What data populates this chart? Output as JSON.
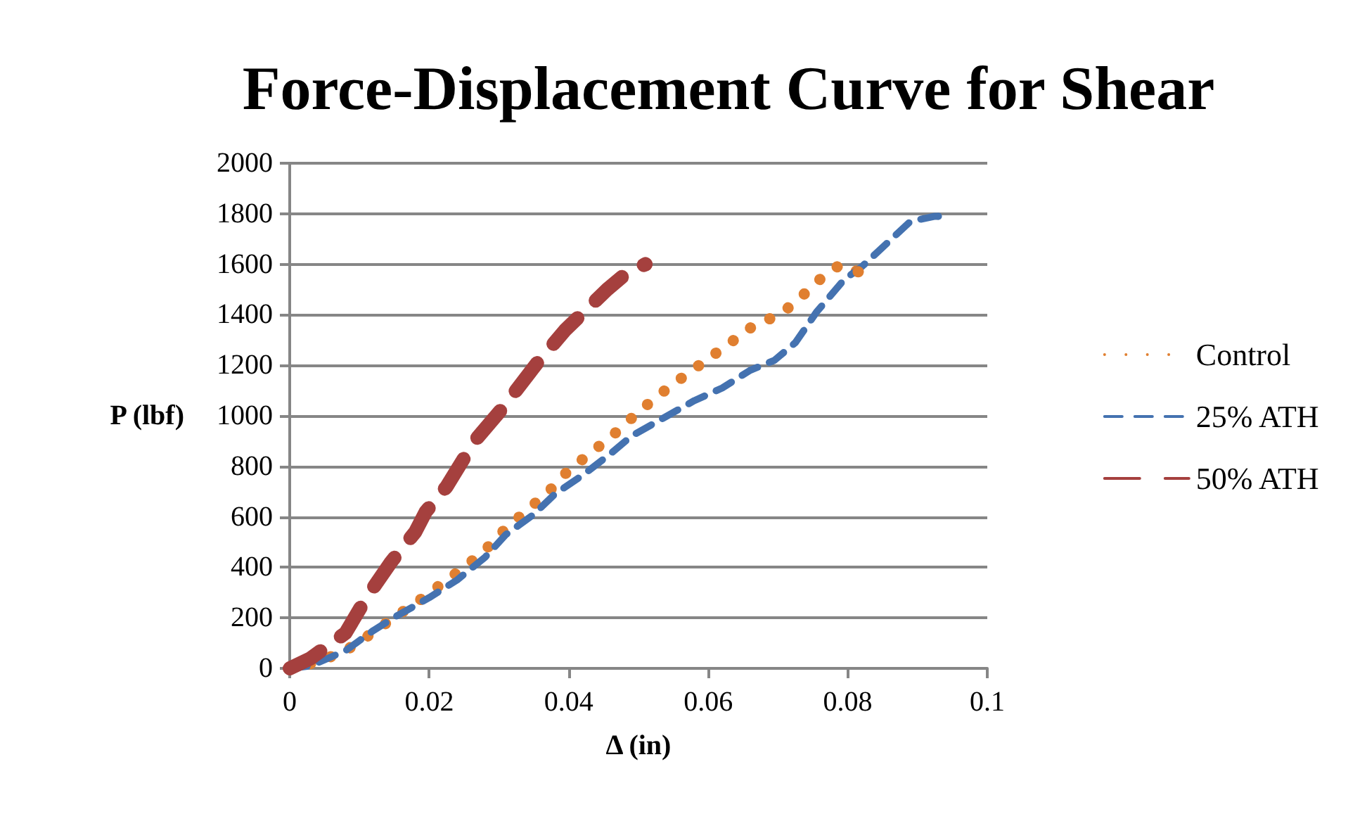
{
  "chart_data": {
    "type": "line",
    "title": "Force-Displacement Curve for Shear",
    "xlabel": "Δ (in)",
    "ylabel": "P (lbf)",
    "xlim": [
      0,
      0.1
    ],
    "xticks": [
      0,
      0.02,
      0.04,
      0.06,
      0.08,
      0.1
    ],
    "ylim": [
      0,
      2000
    ],
    "yticks": [
      0,
      200,
      400,
      600,
      800,
      1000,
      1200,
      1400,
      1600,
      1800,
      2000
    ],
    "grid": "y",
    "legend": "right",
    "marker": "none",
    "series": [
      {
        "name": "Control",
        "color": "#e07f30",
        "line_style": "dotted",
        "x": [
          0,
          0.004,
          0.008,
          0.0113,
          0.0149,
          0.0184,
          0.0218,
          0.0255,
          0.0284,
          0.031,
          0.034,
          0.0373,
          0.04,
          0.0435,
          0.0468,
          0.0498,
          0.0528,
          0.0562,
          0.0597,
          0.0632,
          0.0664,
          0.0697,
          0.0724,
          0.0755,
          0.079,
          0.0815
        ],
        "values": [
          0,
          25,
          70,
          130,
          200,
          265,
          335,
          410,
          480,
          555,
          625,
          705,
          785,
          860,
          935,
          1010,
          1080,
          1150,
          1220,
          1290,
          1355,
          1395,
          1445,
          1530,
          1600,
          1570
        ]
      },
      {
        "name": "25% ATH",
        "color": "#4472b0",
        "line_style": "dashed",
        "x": [
          0,
          0.003,
          0.008,
          0.012,
          0.0155,
          0.02,
          0.024,
          0.028,
          0.031,
          0.035,
          0.038,
          0.042,
          0.046,
          0.049,
          0.0535,
          0.058,
          0.062,
          0.066,
          0.0695,
          0.0725,
          0.0755,
          0.0795,
          0.082,
          0.0855,
          0.089,
          0.0925,
          0.093
        ],
        "values": [
          0,
          10,
          70,
          150,
          210,
          280,
          350,
          440,
          530,
          610,
          690,
          765,
          850,
          920,
          990,
          1060,
          1110,
          1180,
          1220,
          1290,
          1410,
          1540,
          1590,
          1680,
          1770,
          1790,
          1790
        ]
      },
      {
        "name": "50% ATH",
        "color": "#a5403e",
        "line_style": "dashed",
        "x": [
          0,
          0.003,
          0.006,
          0.008,
          0.011,
          0.0145,
          0.018,
          0.0195,
          0.0225,
          0.0265,
          0.0305,
          0.0355,
          0.0395,
          0.0455,
          0.0485,
          0.051
        ],
        "values": [
          0,
          40,
          100,
          140,
          280,
          420,
          540,
          620,
          720,
          900,
          1030,
          1210,
          1340,
          1500,
          1570,
          1600
        ]
      }
    ]
  }
}
